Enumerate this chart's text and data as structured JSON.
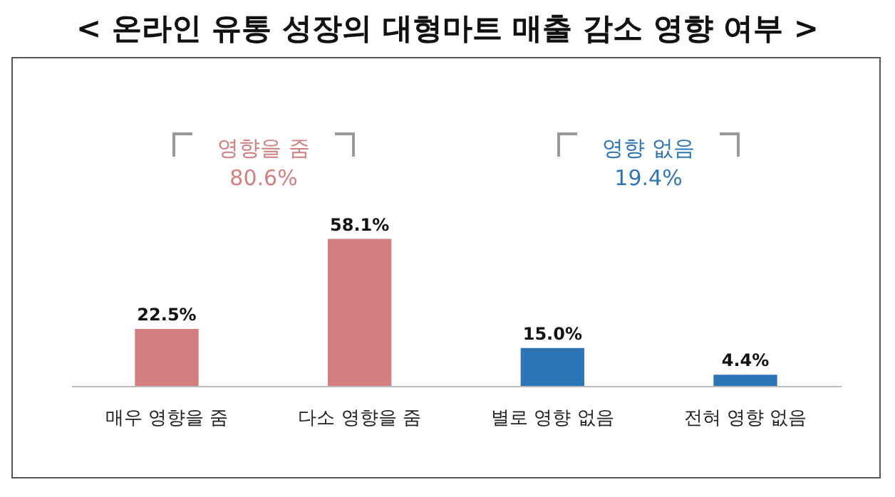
{
  "chart_data": {
    "type": "bar",
    "title": "< 온라인 유통 성장의 대형마트 매출 감소 영향 여부 >",
    "categories": [
      "매우 영향을 줌",
      "다소 영향을 줌",
      "별로 영향 없음",
      "전혀 영향 없음"
    ],
    "values": [
      22.5,
      58.1,
      15.0,
      4.4
    ],
    "colors": [
      "#d47f7f",
      "#d47f7f",
      "#2e75b6",
      "#2e75b6"
    ],
    "value_labels": [
      "22.5%",
      "58.1%",
      "15.0%",
      "4.4%"
    ],
    "annotations": [
      "영향을 줌",
      "80.6%",
      "영향 없음",
      "19.4%"
    ]
  }
}
